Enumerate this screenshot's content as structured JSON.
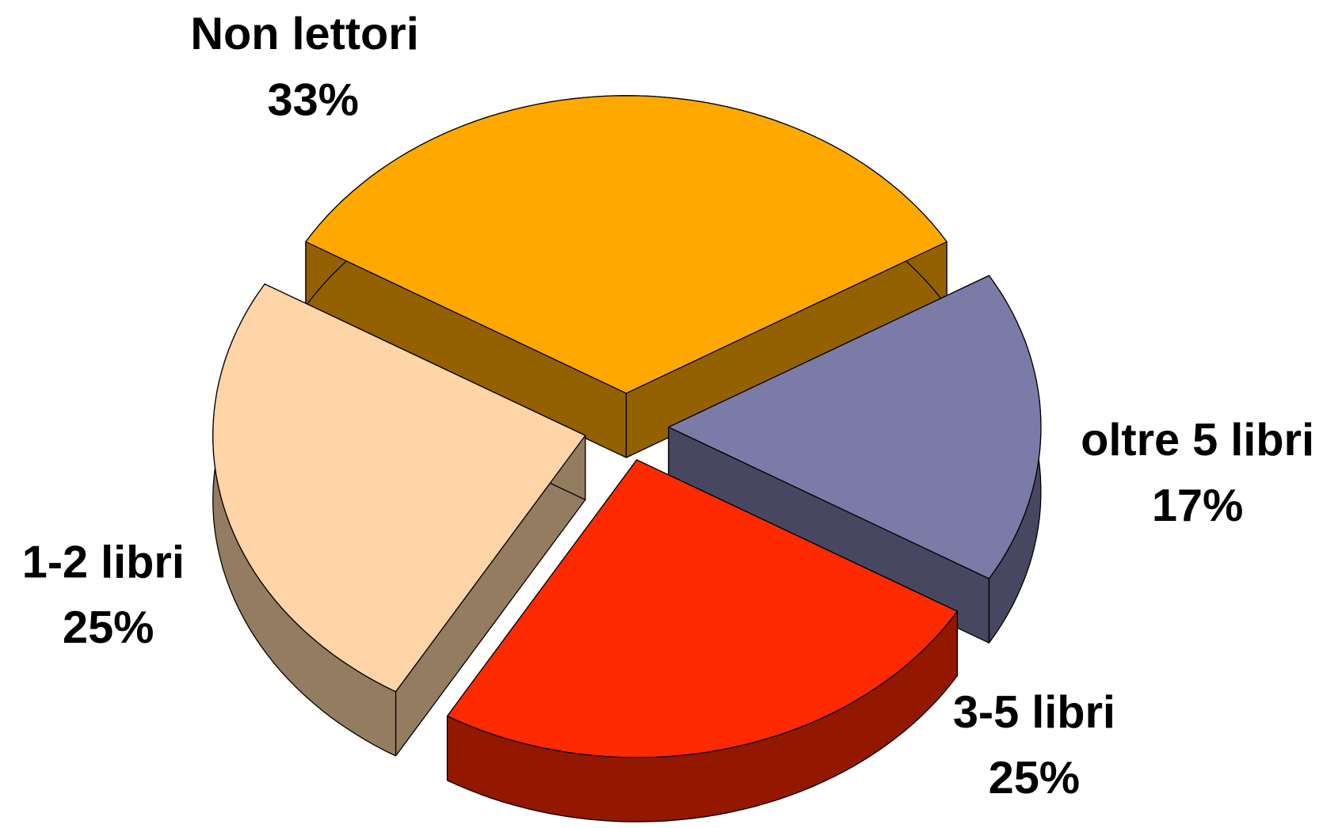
{
  "chart_data": {
    "type": "pie",
    "categories": [
      "Non lettori",
      "oltre 5 libri",
      "3-5 libri",
      "1-2 libri"
    ],
    "values": [
      33,
      17,
      25,
      25
    ],
    "value_labels": [
      "33%",
      "17%",
      "25%",
      "25%"
    ],
    "colors": [
      "#ffa800",
      "#7b7ba8",
      "#ff2a00",
      "#ffd5a8"
    ]
  }
}
